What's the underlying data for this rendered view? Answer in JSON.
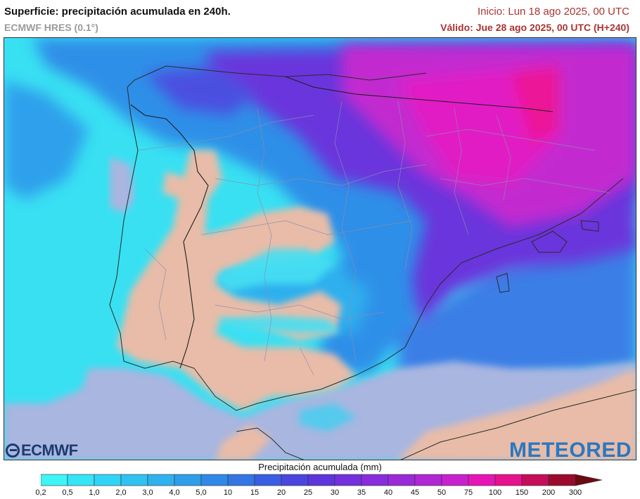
{
  "header": {
    "title": "Superficie: precipitación acumulada en 240h.",
    "model": "ECMWF HRES (0.1°)",
    "init": "Inicio: Lun 18 ago 2025, 00 UTC",
    "valid": "Válido: Jue 28 ago 2025, 00 UTC (H+240)"
  },
  "logos": {
    "left": "ECMWF",
    "right": "METEORED"
  },
  "legend": {
    "title": "Precipitación acumulada (mm)",
    "labels": [
      "0,2",
      "0,5",
      "1,0",
      "2,0",
      "3,0",
      "4,0",
      "5,0",
      "10",
      "15",
      "20",
      "25",
      "30",
      "35",
      "40",
      "45",
      "50",
      "75",
      "100",
      "150",
      "200",
      "300"
    ],
    "colors": [
      "#3ff4f6",
      "#35e4f5",
      "#31d4f4",
      "#2fc2f1",
      "#2eb1ee",
      "#2e9eea",
      "#3089e6",
      "#3375e2",
      "#3a5ee2",
      "#4b45df",
      "#5e34dc",
      "#7430dc",
      "#872ddb",
      "#9a2ad8",
      "#b026d4",
      "#c920cd",
      "#e616b6",
      "#e7128b",
      "#c40e5a",
      "#9a0a2c",
      "#6a0a12"
    ]
  },
  "map": {
    "sea_color": "#a8b6e0",
    "dry_land_color": "#e8bca8",
    "land_background": "#39e0f2"
  }
}
